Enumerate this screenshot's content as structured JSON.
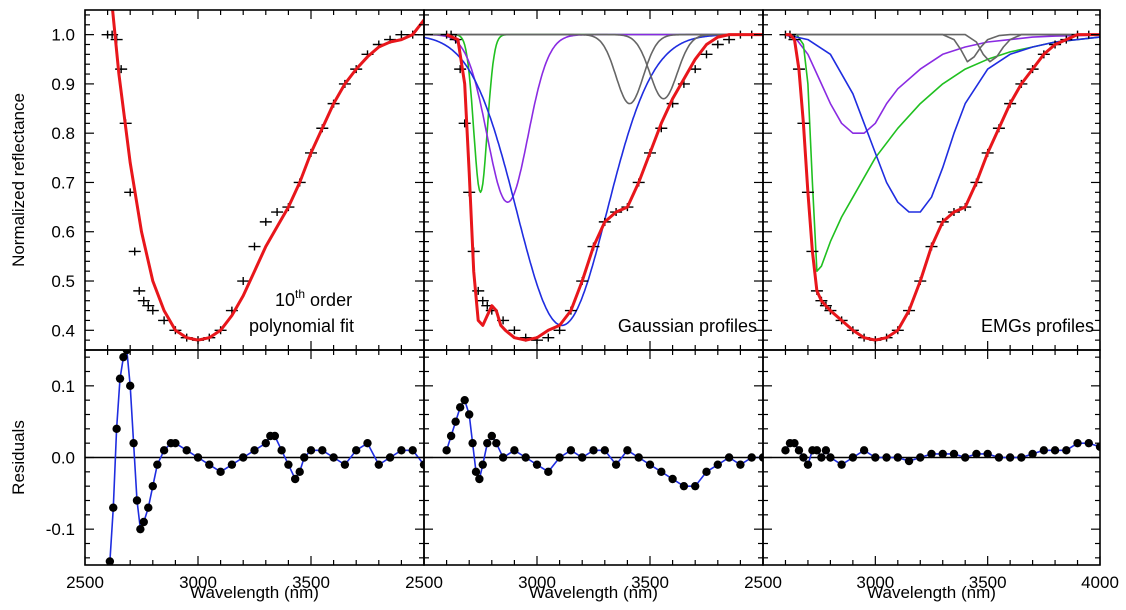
{
  "colors": {
    "fit": "#e8161b",
    "residual_line": "#1f2de0",
    "gaussian_green": "#20c020",
    "gaussian_purple": "#8a2be2",
    "gaussian_blue": "#1f2de0",
    "gaussian_gray": "#666666",
    "data_marker": "#000000"
  },
  "chart_data": [
    {
      "type": "scatter",
      "panel": "polynomial-fit",
      "ylabel": "Normalized reflectance",
      "ylim": [
        0.36,
        1.05
      ],
      "xlim": [
        2500,
        4000
      ],
      "yticks": [
        "0.4",
        "0.5",
        "0.6",
        "0.7",
        "0.8",
        "0.9",
        "1.0"
      ],
      "annotation_base": "10",
      "annotation_sup": "th",
      "annotation_rest": " order",
      "annotation_line2": "polynomial fit",
      "series": [
        {
          "name": "",
          "role": "measured",
          "marker": "plus",
          "x": [
            2600,
            2620,
            2640,
            2660,
            2680,
            2700,
            2720,
            2740,
            2760,
            2780,
            2800,
            2850,
            2900,
            2950,
            3000,
            3050,
            3100,
            3150,
            3200,
            3250,
            3300,
            3350,
            3400,
            3450,
            3500,
            3550,
            3600,
            3650,
            3700,
            3750,
            3800,
            3850,
            3900,
            3950,
            4000
          ],
          "y": [
            1.0,
            1.0,
            0.99,
            0.93,
            0.82,
            0.68,
            0.56,
            0.48,
            0.46,
            0.45,
            0.44,
            0.42,
            0.4,
            0.385,
            0.38,
            0.385,
            0.4,
            0.44,
            0.5,
            0.57,
            0.62,
            0.64,
            0.65,
            0.7,
            0.76,
            0.81,
            0.86,
            0.9,
            0.93,
            0.96,
            0.98,
            0.99,
            1.0,
            1.0,
            1.0
          ]
        },
        {
          "name": "",
          "role": "fit",
          "line": true,
          "x": [
            2620,
            2650,
            2700,
            2750,
            2800,
            2850,
            2900,
            2950,
            3000,
            3050,
            3100,
            3150,
            3200,
            3250,
            3300,
            3350,
            3400,
            3450,
            3500,
            3550,
            3600,
            3650,
            3700,
            3750,
            3800,
            3850,
            3900,
            3950,
            4000
          ],
          "y": [
            1.06,
            0.92,
            0.74,
            0.6,
            0.5,
            0.44,
            0.4,
            0.385,
            0.38,
            0.385,
            0.4,
            0.43,
            0.47,
            0.52,
            0.57,
            0.61,
            0.65,
            0.7,
            0.76,
            0.81,
            0.86,
            0.9,
            0.93,
            0.955,
            0.975,
            0.985,
            0.99,
            1.0,
            1.03
          ]
        }
      ]
    },
    {
      "type": "scatter",
      "panel": "gaussian-fit",
      "ylim": [
        0.36,
        1.05
      ],
      "xlim": [
        2500,
        4000
      ],
      "annotation_line1": "Gaussian profiles",
      "series": [
        {
          "name": "",
          "role": "measured",
          "marker": "plus",
          "x": [
            2600,
            2620,
            2640,
            2660,
            2680,
            2700,
            2720,
            2740,
            2760,
            2780,
            2800,
            2850,
            2900,
            2950,
            3000,
            3050,
            3100,
            3150,
            3200,
            3250,
            3300,
            3350,
            3400,
            3450,
            3500,
            3550,
            3600,
            3650,
            3700,
            3750,
            3800,
            3850,
            3900,
            3950,
            4000
          ],
          "y": [
            1.0,
            1.0,
            0.99,
            0.93,
            0.82,
            0.68,
            0.56,
            0.48,
            0.46,
            0.45,
            0.44,
            0.42,
            0.4,
            0.385,
            0.38,
            0.385,
            0.4,
            0.44,
            0.5,
            0.57,
            0.62,
            0.64,
            0.65,
            0.7,
            0.76,
            0.81,
            0.86,
            0.9,
            0.93,
            0.96,
            0.98,
            0.99,
            1.0,
            1.0,
            1.0
          ]
        },
        {
          "name": "",
          "role": "component",
          "color": "gaussian_green",
          "center": 2750,
          "sigma": 30,
          "depth": 0.32
        },
        {
          "name": "",
          "role": "component",
          "color": "gaussian_purple",
          "center": 2870,
          "sigma": 90,
          "depth": 0.34
        },
        {
          "name": "",
          "role": "component",
          "color": "gaussian_blue",
          "center": 3110,
          "sigma": 200,
          "depth": 0.59
        },
        {
          "name": "",
          "role": "component",
          "color": "gaussian_gray",
          "center": 3410,
          "sigma": 60,
          "depth": 0.14
        },
        {
          "name": "",
          "role": "component",
          "color": "gaussian_gray",
          "center": 3560,
          "sigma": 60,
          "depth": 0.13
        },
        {
          "name": "",
          "role": "fit",
          "line": true,
          "x": [
            2600,
            2650,
            2680,
            2700,
            2720,
            2740,
            2760,
            2780,
            2800,
            2820,
            2840,
            2860,
            2900,
            2950,
            3000,
            3050,
            3100,
            3150,
            3200,
            3250,
            3300,
            3350,
            3400,
            3450,
            3500,
            3550,
            3600,
            3650,
            3700,
            3750,
            3800,
            3850,
            3900,
            3950,
            4000
          ],
          "y": [
            1.0,
            0.99,
            0.9,
            0.72,
            0.52,
            0.42,
            0.41,
            0.43,
            0.45,
            0.44,
            0.41,
            0.4,
            0.385,
            0.38,
            0.385,
            0.4,
            0.41,
            0.44,
            0.5,
            0.57,
            0.62,
            0.64,
            0.65,
            0.7,
            0.76,
            0.82,
            0.87,
            0.91,
            0.95,
            0.98,
            0.995,
            1.0,
            1.0,
            1.0,
            1.0
          ]
        }
      ]
    },
    {
      "type": "scatter",
      "panel": "emg-fit",
      "ylim": [
        0.36,
        1.05
      ],
      "xlim": [
        2500,
        4000
      ],
      "annotation_line1": "EMGs profiles",
      "series": [
        {
          "name": "",
          "role": "measured",
          "marker": "plus",
          "x": [
            2600,
            2620,
            2640,
            2660,
            2680,
            2700,
            2720,
            2740,
            2760,
            2780,
            2800,
            2850,
            2900,
            2950,
            3000,
            3050,
            3100,
            3150,
            3200,
            3250,
            3300,
            3350,
            3400,
            3450,
            3500,
            3550,
            3600,
            3650,
            3700,
            3750,
            3800,
            3850,
            3900,
            3950,
            4000
          ],
          "y": [
            1.0,
            1.0,
            0.99,
            0.93,
            0.82,
            0.68,
            0.56,
            0.48,
            0.46,
            0.45,
            0.44,
            0.42,
            0.4,
            0.385,
            0.38,
            0.385,
            0.4,
            0.44,
            0.5,
            0.57,
            0.62,
            0.64,
            0.65,
            0.7,
            0.76,
            0.81,
            0.86,
            0.9,
            0.93,
            0.96,
            0.98,
            0.99,
            1.0,
            1.0,
            1.0
          ]
        },
        {
          "name": "",
          "role": "component",
          "color": "gaussian_purple",
          "x": [
            2600,
            2650,
            2700,
            2750,
            2800,
            2850,
            2900,
            2950,
            3000,
            3050,
            3100,
            3200,
            3300,
            3400,
            3500,
            3600,
            3700,
            3800,
            3900,
            4000
          ],
          "y": [
            1.0,
            0.99,
            0.96,
            0.91,
            0.86,
            0.82,
            0.8,
            0.8,
            0.82,
            0.86,
            0.89,
            0.93,
            0.96,
            0.975,
            0.985,
            0.99,
            0.995,
            0.997,
            0.998,
            0.999
          ]
        },
        {
          "name": "",
          "role": "component",
          "color": "gaussian_green",
          "x": [
            2600,
            2650,
            2680,
            2700,
            2720,
            2740,
            2760,
            2800,
            2850,
            2900,
            3000,
            3100,
            3200,
            3300,
            3400,
            3500,
            3600,
            3700,
            3800,
            3900,
            4000
          ],
          "y": [
            1.0,
            1.0,
            0.98,
            0.9,
            0.7,
            0.52,
            0.53,
            0.58,
            0.63,
            0.67,
            0.75,
            0.81,
            0.86,
            0.9,
            0.93,
            0.95,
            0.965,
            0.975,
            0.985,
            0.99,
            0.995
          ]
        },
        {
          "name": "",
          "role": "component",
          "color": "gaussian_blue",
          "x": [
            2600,
            2700,
            2800,
            2900,
            2950,
            3000,
            3050,
            3100,
            3150,
            3200,
            3250,
            3300,
            3350,
            3400,
            3500,
            3600,
            3700,
            3800,
            3900,
            4000
          ],
          "y": [
            1.0,
            0.99,
            0.96,
            0.88,
            0.82,
            0.76,
            0.7,
            0.66,
            0.64,
            0.64,
            0.67,
            0.73,
            0.8,
            0.86,
            0.93,
            0.96,
            0.975,
            0.985,
            0.99,
            0.995
          ]
        },
        {
          "name": "",
          "role": "component",
          "color": "gaussian_gray",
          "x": [
            2600,
            3300,
            3350,
            3380,
            3410,
            3440,
            3470,
            3500,
            3550,
            3600,
            4000
          ],
          "y": [
            1.0,
            1.0,
            0.99,
            0.97,
            0.945,
            0.955,
            0.975,
            0.99,
            0.998,
            1.0,
            1.0
          ]
        },
        {
          "name": "",
          "role": "component",
          "color": "gaussian_gray",
          "x": [
            2600,
            3400,
            3450,
            3480,
            3510,
            3540,
            3570,
            3600,
            3650,
            4000
          ],
          "y": [
            1.0,
            1.0,
            0.985,
            0.96,
            0.945,
            0.955,
            0.975,
            0.99,
            1.0,
            1.0
          ]
        },
        {
          "name": "",
          "role": "fit",
          "line": true,
          "x": [
            2600,
            2620,
            2640,
            2660,
            2680,
            2700,
            2720,
            2740,
            2760,
            2780,
            2800,
            2850,
            2900,
            2950,
            3000,
            3050,
            3100,
            3150,
            3200,
            3250,
            3300,
            3350,
            3400,
            3450,
            3500,
            3550,
            3600,
            3650,
            3700,
            3750,
            3800,
            3850,
            3900,
            3950,
            4000
          ],
          "y": [
            1.0,
            1.0,
            0.99,
            0.93,
            0.82,
            0.68,
            0.56,
            0.48,
            0.46,
            0.45,
            0.44,
            0.42,
            0.4,
            0.385,
            0.38,
            0.385,
            0.4,
            0.44,
            0.5,
            0.57,
            0.62,
            0.64,
            0.65,
            0.7,
            0.76,
            0.81,
            0.86,
            0.9,
            0.93,
            0.96,
            0.98,
            0.99,
            1.0,
            1.0,
            1.0
          ]
        }
      ]
    },
    {
      "type": "scatter",
      "panel": "polynomial-residuals",
      "ylabel": "Residuals",
      "xlabel": "Wavelength (nm)",
      "ylim": [
        -0.15,
        0.15
      ],
      "xlim": [
        2500,
        4000
      ],
      "yticks": [
        "-0.1",
        "0.0",
        "0.1"
      ],
      "xticks": [
        "2500",
        "3000",
        "3500"
      ],
      "series": [
        {
          "name": "",
          "role": "residual",
          "x": [
            2610,
            2625,
            2640,
            2655,
            2670,
            2685,
            2700,
            2715,
            2730,
            2745,
            2760,
            2780,
            2800,
            2820,
            2850,
            2880,
            2900,
            2950,
            3000,
            3050,
            3100,
            3150,
            3200,
            3250,
            3300,
            3320,
            3340,
            3370,
            3400,
            3430,
            3450,
            3470,
            3500,
            3550,
            3600,
            3650,
            3700,
            3750,
            3800,
            3850,
            3900,
            3950,
            4000
          ],
          "y": [
            -0.145,
            -0.07,
            0.04,
            0.11,
            0.14,
            0.15,
            0.1,
            0.02,
            -0.06,
            -0.1,
            -0.09,
            -0.07,
            -0.04,
            -0.01,
            0.01,
            0.02,
            0.02,
            0.01,
            0.0,
            -0.01,
            -0.02,
            -0.01,
            0.0,
            0.01,
            0.02,
            0.03,
            0.03,
            0.01,
            -0.01,
            -0.03,
            -0.02,
            0.0,
            0.01,
            0.01,
            0.0,
            -0.01,
            0.01,
            0.02,
            -0.01,
            0.0,
            0.01,
            0.01,
            -0.01
          ]
        }
      ]
    },
    {
      "type": "scatter",
      "panel": "gaussian-residuals",
      "xlabel": "Wavelength (nm)",
      "ylim": [
        -0.15,
        0.15
      ],
      "xlim": [
        2500,
        4000
      ],
      "xticks": [
        "2500",
        "3000",
        "3500"
      ],
      "series": [
        {
          "name": "",
          "role": "residual",
          "x": [
            2600,
            2620,
            2640,
            2660,
            2680,
            2700,
            2715,
            2730,
            2745,
            2760,
            2780,
            2800,
            2820,
            2850,
            2900,
            2950,
            3000,
            3050,
            3100,
            3150,
            3200,
            3250,
            3300,
            3350,
            3400,
            3450,
            3500,
            3550,
            3600,
            3650,
            3700,
            3750,
            3800,
            3850,
            3900,
            3950,
            4000
          ],
          "y": [
            0.01,
            0.03,
            0.05,
            0.07,
            0.08,
            0.06,
            0.02,
            -0.02,
            -0.03,
            -0.01,
            0.02,
            0.03,
            0.02,
            0.0,
            0.01,
            0.0,
            -0.01,
            -0.02,
            0.0,
            0.01,
            0.0,
            0.01,
            0.01,
            -0.01,
            0.01,
            0.0,
            -0.01,
            -0.02,
            -0.03,
            -0.04,
            -0.04,
            -0.02,
            -0.01,
            0.0,
            -0.01,
            0.0,
            0.0
          ]
        }
      ]
    },
    {
      "type": "scatter",
      "panel": "emg-residuals",
      "xlabel": "Wavelength (nm)",
      "ylim": [
        -0.15,
        0.15
      ],
      "xlim": [
        2500,
        4000
      ],
      "xticks": [
        "2500",
        "3000",
        "3500",
        "4000"
      ],
      "series": [
        {
          "name": "",
          "role": "residual",
          "x": [
            2600,
            2620,
            2640,
            2660,
            2680,
            2700,
            2720,
            2740,
            2760,
            2780,
            2800,
            2850,
            2900,
            2950,
            3000,
            3050,
            3100,
            3150,
            3200,
            3250,
            3300,
            3350,
            3400,
            3450,
            3500,
            3550,
            3600,
            3650,
            3700,
            3750,
            3800,
            3850,
            3900,
            3950,
            4000
          ],
          "y": [
            0.01,
            0.02,
            0.02,
            0.01,
            0.0,
            -0.01,
            0.01,
            0.01,
            0.0,
            0.01,
            0.0,
            -0.01,
            0.0,
            0.01,
            0.0,
            0.0,
            0.0,
            -0.005,
            0.0,
            0.005,
            0.005,
            0.005,
            0.0,
            0.005,
            0.005,
            0.0,
            0.0,
            0.0,
            0.005,
            0.01,
            0.01,
            0.01,
            0.02,
            0.02,
            0.015
          ]
        }
      ]
    }
  ]
}
